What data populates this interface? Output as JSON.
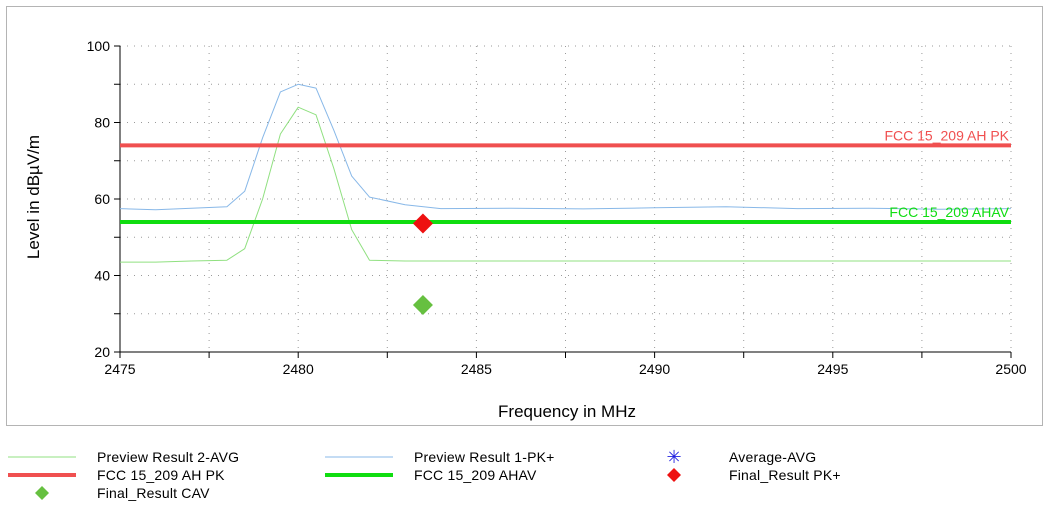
{
  "chart_data": {
    "type": "line",
    "xlabel": "Frequency in MHz",
    "ylabel": "Level in dBµV/m",
    "xlim": [
      2475,
      2500
    ],
    "ylim": [
      20,
      100
    ],
    "x_ticks": [
      2475,
      2480,
      2485,
      2490,
      2495,
      2500
    ],
    "y_ticks": [
      20,
      40,
      60,
      80,
      100
    ],
    "grid": true,
    "series": [
      {
        "name": "Preview Result 2-AVG",
        "color": "#90e080",
        "points": [
          [
            2475,
            43.5
          ],
          [
            2476,
            43.5
          ],
          [
            2477,
            43.8
          ],
          [
            2478,
            44
          ],
          [
            2478.5,
            47
          ],
          [
            2479,
            60
          ],
          [
            2479.5,
            77
          ],
          [
            2480,
            84
          ],
          [
            2480.5,
            82
          ],
          [
            2481,
            68
          ],
          [
            2481.5,
            52
          ],
          [
            2482,
            44
          ],
          [
            2483,
            43.8
          ],
          [
            2485,
            43.8
          ],
          [
            2490,
            43.8
          ],
          [
            2495,
            43.8
          ],
          [
            2500,
            43.8
          ]
        ]
      },
      {
        "name": "Preview Result 1-PK+",
        "color": "#88b8e8",
        "points": [
          [
            2475,
            57.5
          ],
          [
            2476,
            57.2
          ],
          [
            2477,
            57.6
          ],
          [
            2478,
            58
          ],
          [
            2478.5,
            62
          ],
          [
            2479,
            76
          ],
          [
            2479.5,
            88
          ],
          [
            2480,
            90
          ],
          [
            2480.5,
            89
          ],
          [
            2481,
            78
          ],
          [
            2481.5,
            66
          ],
          [
            2482,
            60.5
          ],
          [
            2483,
            58.5
          ],
          [
            2484,
            57.5
          ],
          [
            2486,
            57.6
          ],
          [
            2488,
            57.4
          ],
          [
            2490,
            57.7
          ],
          [
            2492,
            58
          ],
          [
            2494,
            57.5
          ],
          [
            2496,
            57.6
          ],
          [
            2498,
            57.3
          ],
          [
            2500,
            57.5
          ]
        ]
      },
      {
        "name": "Average-AVG",
        "color": "#2020e0",
        "points": []
      },
      {
        "name": "FCC 15_209 AH PK",
        "color": "#f05050",
        "points": [
          [
            2475,
            74
          ],
          [
            2500,
            74
          ]
        ]
      },
      {
        "name": "FCC 15_209 AHAV",
        "color": "#10dd10",
        "points": [
          [
            2475,
            54
          ],
          [
            2500,
            54
          ]
        ]
      },
      {
        "name": "Final_Result PK+",
        "color": "#ee1111",
        "points": [
          [
            2483.5,
            53.6
          ]
        ]
      },
      {
        "name": "Final_Result CAV",
        "color": "#66c040",
        "points": [
          [
            2483.5,
            32.3
          ]
        ]
      }
    ],
    "limit_labels": [
      {
        "text": "FCC 15_209 AH PK",
        "color": "#f05050",
        "y": 74
      },
      {
        "text": "FCC 15_209 AHAV",
        "color": "#10dd10",
        "y": 54
      }
    ]
  },
  "legend": [
    {
      "label": "Preview Result 2-AVG",
      "symbol": "thin-line",
      "color": "#90e080"
    },
    {
      "label": "Preview Result 1-PK+",
      "symbol": "thin-line",
      "color": "#88b8e8"
    },
    {
      "label": "Average-AVG",
      "symbol": "asterisk",
      "color": "#2020e0"
    },
    {
      "label": "FCC 15_209 AH PK",
      "symbol": "thick-line",
      "color": "#f05050"
    },
    {
      "label": "FCC 15_209 AHAV",
      "symbol": "thick-line",
      "color": "#10dd10"
    },
    {
      "label": "Final_Result PK+",
      "symbol": "diamond",
      "color": "#ee1111"
    },
    {
      "label": "Final_Result CAV",
      "symbol": "diamond",
      "color": "#66c040"
    }
  ]
}
